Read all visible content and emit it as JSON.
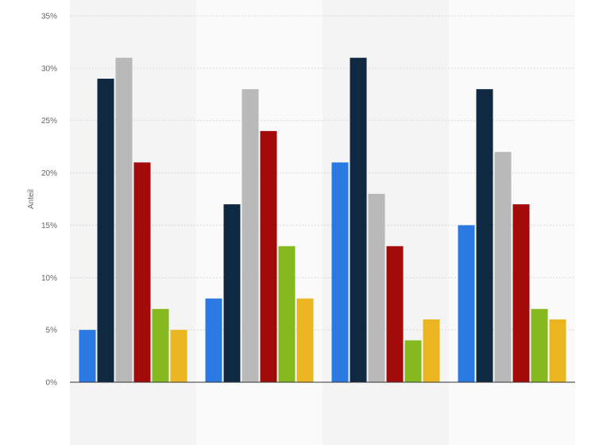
{
  "chart_data": {
    "type": "bar",
    "categories": [
      "",
      "",
      "",
      ""
    ],
    "series": [
      {
        "color": "#2a7ae2",
        "values": [
          5,
          8,
          21,
          15
        ]
      },
      {
        "color": "#0f2942",
        "values": [
          29,
          17,
          31,
          28
        ]
      },
      {
        "color": "#b9b9b9",
        "values": [
          31,
          28,
          18,
          22
        ]
      },
      {
        "color": "#a30b0b",
        "values": [
          21,
          24,
          13,
          17
        ]
      },
      {
        "color": "#86b920",
        "values": [
          7,
          13,
          4,
          7
        ]
      },
      {
        "color": "#ebb521",
        "values": [
          5,
          8,
          6,
          6
        ]
      }
    ],
    "title": "",
    "xlabel": "",
    "ylabel": "Anteil",
    "ylim": [
      0,
      35
    ],
    "yticks": [
      0,
      5,
      10,
      15,
      20,
      25,
      30,
      35
    ],
    "ytick_labels": [
      "0%",
      "5%",
      "10%",
      "15%",
      "20%",
      "25%",
      "30%",
      "35%"
    ],
    "grid": true,
    "legend": "none"
  }
}
